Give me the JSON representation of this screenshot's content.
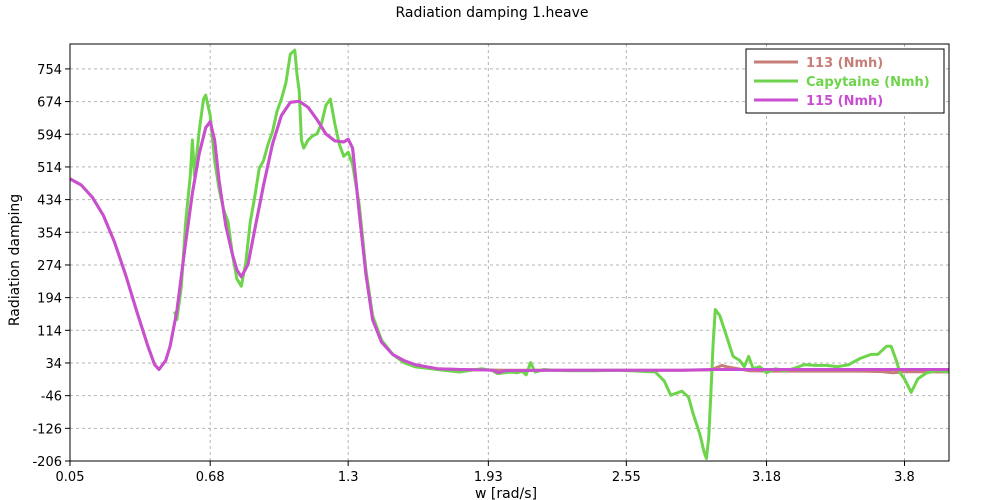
{
  "chart_data": {
    "type": "line",
    "title": "Radiation damping 1.heave",
    "xlabel": "w [rad/s]",
    "ylabel": "Radiation damping",
    "xlim": [
      0.05,
      4.0
    ],
    "ylim": [
      -206,
      815
    ],
    "x_ticks": [
      "0.05",
      "0.68",
      "1.3",
      "1.93",
      "2.55",
      "3.18",
      "3.8"
    ],
    "y_ticks": [
      "-206",
      "-126",
      "-46",
      "34",
      "114",
      "194",
      "274",
      "354",
      "434",
      "514",
      "594",
      "674",
      "754"
    ],
    "grid": true,
    "legend_position": "top-right",
    "series": [
      {
        "name": "113 (Nmh)",
        "color": "#c87e78",
        "points": [
          [
            0.05,
            485
          ],
          [
            0.1,
            470
          ],
          [
            0.15,
            440
          ],
          [
            0.2,
            395
          ],
          [
            0.25,
            330
          ],
          [
            0.3,
            250
          ],
          [
            0.35,
            160
          ],
          [
            0.4,
            75
          ],
          [
            0.43,
            30
          ],
          [
            0.45,
            18
          ],
          [
            0.48,
            40
          ],
          [
            0.5,
            75
          ],
          [
            0.53,
            160
          ],
          [
            0.57,
            330
          ],
          [
            0.6,
            450
          ],
          [
            0.63,
            545
          ],
          [
            0.66,
            610
          ],
          [
            0.68,
            625
          ],
          [
            0.7,
            580
          ],
          [
            0.72,
            480
          ],
          [
            0.75,
            370
          ],
          [
            0.78,
            300
          ],
          [
            0.8,
            262
          ],
          [
            0.82,
            245
          ],
          [
            0.85,
            275
          ],
          [
            0.88,
            360
          ],
          [
            0.92,
            470
          ],
          [
            0.96,
            570
          ],
          [
            1.0,
            640
          ],
          [
            1.04,
            672
          ],
          [
            1.08,
            675
          ],
          [
            1.12,
            660
          ],
          [
            1.16,
            630
          ],
          [
            1.2,
            595
          ],
          [
            1.24,
            578
          ],
          [
            1.28,
            575
          ],
          [
            1.3,
            582
          ],
          [
            1.32,
            560
          ],
          [
            1.35,
            400
          ],
          [
            1.38,
            250
          ],
          [
            1.41,
            140
          ],
          [
            1.45,
            85
          ],
          [
            1.5,
            55
          ],
          [
            1.55,
            40
          ],
          [
            1.6,
            30
          ],
          [
            1.65,
            25
          ],
          [
            1.7,
            20
          ],
          [
            1.8,
            18
          ],
          [
            1.9,
            17
          ],
          [
            2.0,
            16
          ],
          [
            2.2,
            16
          ],
          [
            2.5,
            16
          ],
          [
            2.8,
            16
          ],
          [
            2.93,
            17
          ],
          [
            2.98,
            28
          ],
          [
            3.0,
            25
          ],
          [
            3.05,
            20
          ],
          [
            3.1,
            15
          ],
          [
            3.2,
            14
          ],
          [
            3.4,
            14
          ],
          [
            3.6,
            14
          ],
          [
            3.7,
            13
          ],
          [
            3.75,
            10
          ],
          [
            3.8,
            13
          ],
          [
            4.0,
            12
          ]
        ]
      },
      {
        "name": "Capytaine (Nmh)",
        "color": "#6ed44c",
        "points": [
          [
            0.52,
            160
          ],
          [
            0.53,
            140
          ],
          [
            0.55,
            220
          ],
          [
            0.57,
            380
          ],
          [
            0.59,
            490
          ],
          [
            0.6,
            580
          ],
          [
            0.61,
            490
          ],
          [
            0.63,
            600
          ],
          [
            0.65,
            680
          ],
          [
            0.66,
            690
          ],
          [
            0.68,
            640
          ],
          [
            0.7,
            530
          ],
          [
            0.72,
            460
          ],
          [
            0.74,
            410
          ],
          [
            0.76,
            380
          ],
          [
            0.78,
            300
          ],
          [
            0.8,
            240
          ],
          [
            0.82,
            222
          ],
          [
            0.84,
            280
          ],
          [
            0.86,
            380
          ],
          [
            0.88,
            440
          ],
          [
            0.9,
            510
          ],
          [
            0.92,
            530
          ],
          [
            0.94,
            570
          ],
          [
            0.96,
            600
          ],
          [
            0.98,
            650
          ],
          [
            1.0,
            680
          ],
          [
            1.02,
            720
          ],
          [
            1.04,
            790
          ],
          [
            1.06,
            800
          ],
          [
            1.07,
            740
          ],
          [
            1.08,
            700
          ],
          [
            1.09,
            580
          ],
          [
            1.1,
            560
          ],
          [
            1.12,
            580
          ],
          [
            1.14,
            590
          ],
          [
            1.16,
            595
          ],
          [
            1.18,
            620
          ],
          [
            1.2,
            665
          ],
          [
            1.22,
            680
          ],
          [
            1.24,
            620
          ],
          [
            1.26,
            570
          ],
          [
            1.28,
            540
          ],
          [
            1.3,
            550
          ],
          [
            1.32,
            520
          ],
          [
            1.35,
            420
          ],
          [
            1.38,
            260
          ],
          [
            1.41,
            150
          ],
          [
            1.45,
            90
          ],
          [
            1.5,
            55
          ],
          [
            1.55,
            35
          ],
          [
            1.6,
            25
          ],
          [
            1.7,
            18
          ],
          [
            1.8,
            12
          ],
          [
            1.9,
            20
          ],
          [
            1.95,
            15
          ],
          [
            1.97,
            8
          ],
          [
            2.0,
            10
          ],
          [
            2.03,
            12
          ],
          [
            2.06,
            10
          ],
          [
            2.08,
            14
          ],
          [
            2.1,
            5
          ],
          [
            2.12,
            35
          ],
          [
            2.14,
            12
          ],
          [
            2.18,
            18
          ],
          [
            2.22,
            16
          ],
          [
            2.3,
            15
          ],
          [
            2.4,
            15
          ],
          [
            2.5,
            16
          ],
          [
            2.6,
            14
          ],
          [
            2.68,
            12
          ],
          [
            2.72,
            -10
          ],
          [
            2.75,
            -45
          ],
          [
            2.8,
            -35
          ],
          [
            2.83,
            -50
          ],
          [
            2.85,
            -90
          ],
          [
            2.88,
            -140
          ],
          [
            2.9,
            -185
          ],
          [
            2.91,
            -200
          ],
          [
            2.92,
            -150
          ],
          [
            2.93,
            -40
          ],
          [
            2.94,
            80
          ],
          [
            2.95,
            165
          ],
          [
            2.97,
            150
          ],
          [
            3.0,
            100
          ],
          [
            3.03,
            50
          ],
          [
            3.06,
            40
          ],
          [
            3.08,
            25
          ],
          [
            3.1,
            50
          ],
          [
            3.12,
            20
          ],
          [
            3.15,
            25
          ],
          [
            3.18,
            10
          ],
          [
            3.22,
            20
          ],
          [
            3.26,
            15
          ],
          [
            3.3,
            20
          ],
          [
            3.35,
            30
          ],
          [
            3.4,
            28
          ],
          [
            3.45,
            28
          ],
          [
            3.5,
            25
          ],
          [
            3.55,
            30
          ],
          [
            3.6,
            45
          ],
          [
            3.65,
            55
          ],
          [
            3.68,
            55
          ],
          [
            3.7,
            65
          ],
          [
            3.72,
            75
          ],
          [
            3.74,
            75
          ],
          [
            3.76,
            45
          ],
          [
            3.78,
            10
          ],
          [
            3.8,
            -5
          ],
          [
            3.83,
            -38
          ],
          [
            3.86,
            -5
          ],
          [
            3.9,
            10
          ],
          [
            3.95,
            15
          ],
          [
            4.0,
            12
          ]
        ]
      },
      {
        "name": "115 (Nmh)",
        "color": "#c94ed0",
        "points": [
          [
            0.05,
            485
          ],
          [
            0.1,
            470
          ],
          [
            0.15,
            440
          ],
          [
            0.2,
            395
          ],
          [
            0.25,
            330
          ],
          [
            0.3,
            250
          ],
          [
            0.35,
            160
          ],
          [
            0.4,
            75
          ],
          [
            0.43,
            30
          ],
          [
            0.45,
            18
          ],
          [
            0.48,
            40
          ],
          [
            0.5,
            75
          ],
          [
            0.53,
            160
          ],
          [
            0.57,
            330
          ],
          [
            0.6,
            450
          ],
          [
            0.63,
            545
          ],
          [
            0.66,
            610
          ],
          [
            0.68,
            625
          ],
          [
            0.7,
            580
          ],
          [
            0.72,
            480
          ],
          [
            0.75,
            370
          ],
          [
            0.78,
            300
          ],
          [
            0.8,
            262
          ],
          [
            0.82,
            245
          ],
          [
            0.85,
            275
          ],
          [
            0.88,
            360
          ],
          [
            0.92,
            470
          ],
          [
            0.96,
            570
          ],
          [
            1.0,
            640
          ],
          [
            1.04,
            672
          ],
          [
            1.08,
            675
          ],
          [
            1.12,
            660
          ],
          [
            1.16,
            630
          ],
          [
            1.2,
            595
          ],
          [
            1.24,
            578
          ],
          [
            1.28,
            575
          ],
          [
            1.3,
            582
          ],
          [
            1.32,
            560
          ],
          [
            1.35,
            400
          ],
          [
            1.38,
            250
          ],
          [
            1.41,
            140
          ],
          [
            1.45,
            85
          ],
          [
            1.5,
            55
          ],
          [
            1.55,
            40
          ],
          [
            1.6,
            30
          ],
          [
            1.65,
            25
          ],
          [
            1.7,
            20
          ],
          [
            1.8,
            18
          ],
          [
            1.9,
            17
          ],
          [
            1.95,
            16
          ],
          [
            1.98,
            10
          ],
          [
            2.0,
            15
          ],
          [
            2.2,
            16
          ],
          [
            2.5,
            16
          ],
          [
            2.8,
            16
          ],
          [
            2.93,
            18
          ],
          [
            3.0,
            18
          ],
          [
            4.0,
            18
          ]
        ]
      }
    ]
  }
}
